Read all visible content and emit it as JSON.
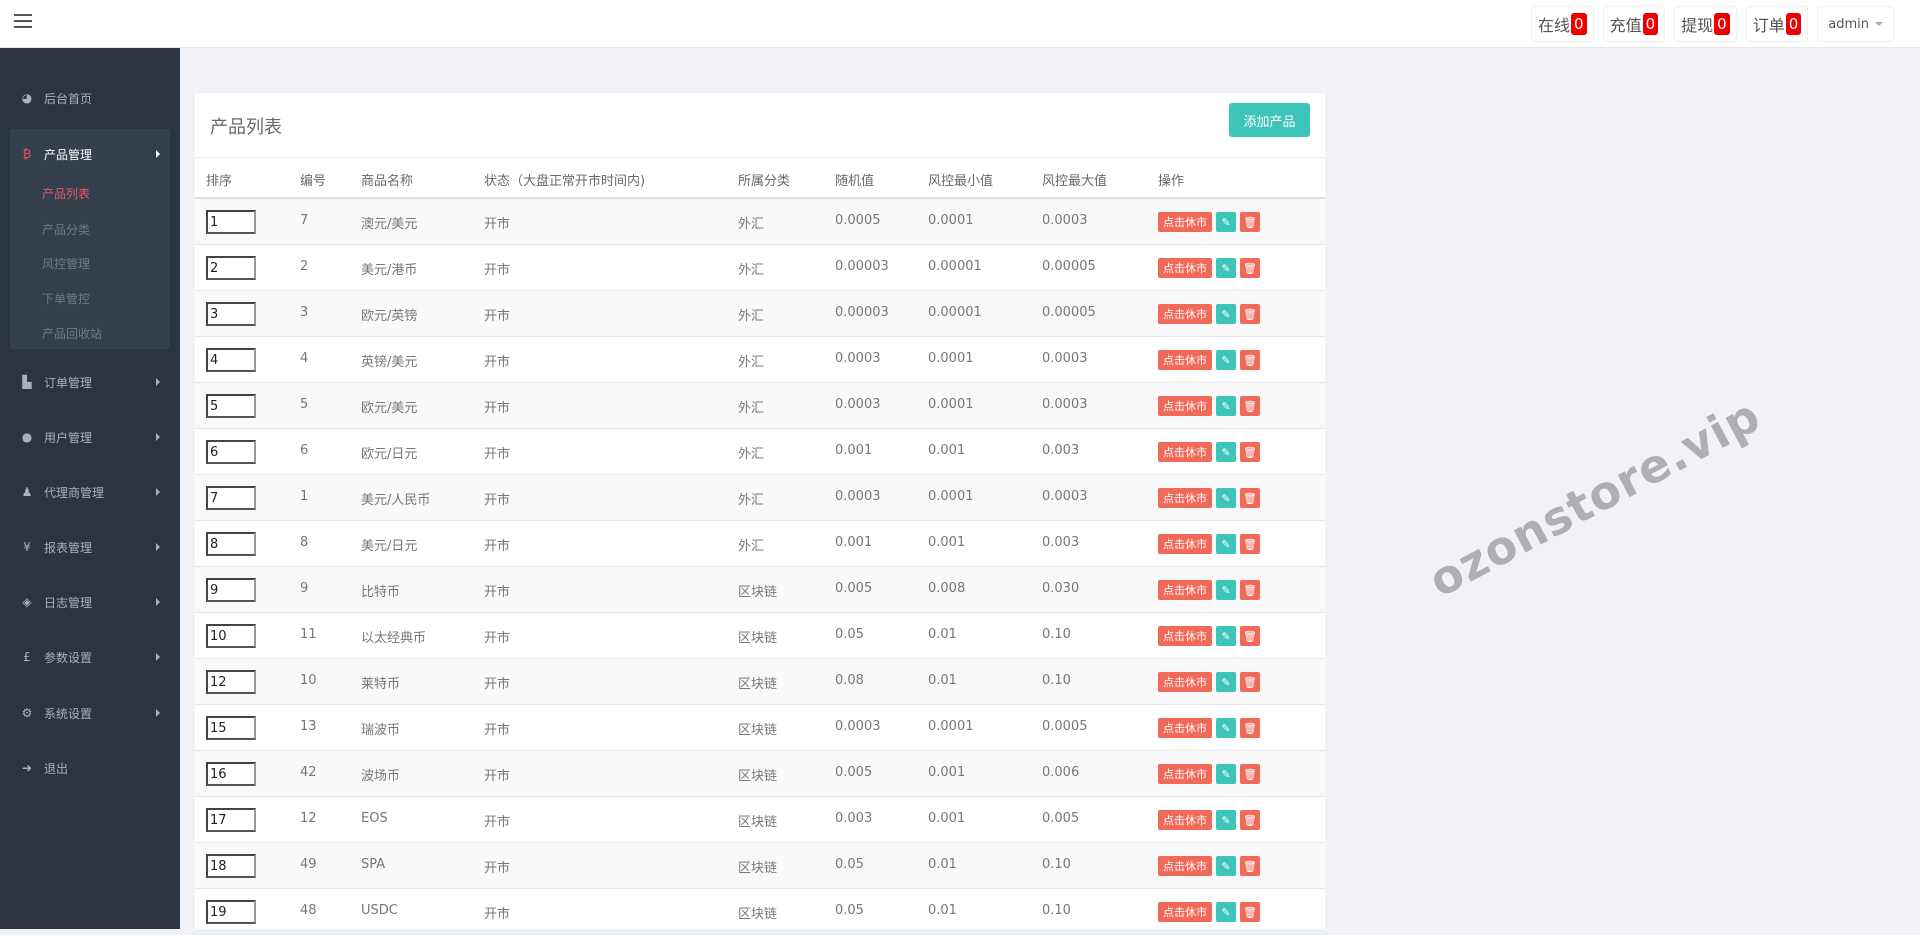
{
  "topbar": {
    "stats": [
      {
        "label": "在线",
        "count": "0"
      },
      {
        "label": "充值",
        "count": "0"
      },
      {
        "label": "提现",
        "count": "0"
      },
      {
        "label": "订单",
        "count": "0"
      }
    ],
    "user": "admin"
  },
  "sidebar": {
    "home": {
      "label": "后台首页",
      "icon": "dashboard-icon"
    },
    "product": {
      "label": "产品管理",
      "icon": "bitcoin-icon",
      "subitems": [
        "产品列表",
        "产品分类",
        "风控管理",
        "下单管控",
        "产品回收站"
      ],
      "active_sub": "产品列表"
    },
    "items": [
      {
        "label": "订单管理",
        "icon": "files-icon"
      },
      {
        "label": "用户管理",
        "icon": "user-icon"
      },
      {
        "label": "代理商管理",
        "icon": "user-md-icon"
      },
      {
        "label": "报表管理",
        "icon": "yen-icon"
      },
      {
        "label": "日志管理",
        "icon": "ticket-icon"
      },
      {
        "label": "参数设置",
        "icon": "pound-icon"
      },
      {
        "label": "系统设置",
        "icon": "gears-icon"
      }
    ],
    "logout": {
      "label": "退出",
      "icon": "sign-out-icon"
    }
  },
  "panel": {
    "title": "产品列表",
    "add_button": "添加产品",
    "columns": [
      "排序",
      "编号",
      "商品名称",
      "状态（大盘正常开市时间内)",
      "所属分类",
      "随机值",
      "风控最小值",
      "风控最大值",
      "操作"
    ],
    "action_close": "点击休市",
    "rows": [
      {
        "sort": "1",
        "id": "7",
        "name": "澳元/美元",
        "status": "开市",
        "category": "外汇",
        "random": "0.0005",
        "min": "0.0001",
        "max": "0.0003"
      },
      {
        "sort": "2",
        "id": "2",
        "name": "美元/港币",
        "status": "开市",
        "category": "外汇",
        "random": "0.00003",
        "min": "0.00001",
        "max": "0.00005"
      },
      {
        "sort": "3",
        "id": "3",
        "name": "欧元/英镑",
        "status": "开市",
        "category": "外汇",
        "random": "0.00003",
        "min": "0.00001",
        "max": "0.00005"
      },
      {
        "sort": "4",
        "id": "4",
        "name": "英镑/美元",
        "status": "开市",
        "category": "外汇",
        "random": "0.0003",
        "min": "0.0001",
        "max": "0.0003"
      },
      {
        "sort": "5",
        "id": "5",
        "name": "欧元/美元",
        "status": "开市",
        "category": "外汇",
        "random": "0.0003",
        "min": "0.0001",
        "max": "0.0003"
      },
      {
        "sort": "6",
        "id": "6",
        "name": "欧元/日元",
        "status": "开市",
        "category": "外汇",
        "random": "0.001",
        "min": "0.001",
        "max": "0.003"
      },
      {
        "sort": "7",
        "id": "1",
        "name": "美元/人民币",
        "status": "开市",
        "category": "外汇",
        "random": "0.0003",
        "min": "0.0001",
        "max": "0.0003"
      },
      {
        "sort": "8",
        "id": "8",
        "name": "美元/日元",
        "status": "开市",
        "category": "外汇",
        "random": "0.001",
        "min": "0.001",
        "max": "0.003"
      },
      {
        "sort": "9",
        "id": "9",
        "name": "比特币",
        "status": "开市",
        "category": "区块链",
        "random": "0.005",
        "min": "0.008",
        "max": "0.030"
      },
      {
        "sort": "10",
        "id": "11",
        "name": "以太经典币",
        "status": "开市",
        "category": "区块链",
        "random": "0.05",
        "min": "0.01",
        "max": "0.10"
      },
      {
        "sort": "12",
        "id": "10",
        "name": "莱特币",
        "status": "开市",
        "category": "区块链",
        "random": "0.08",
        "min": "0.01",
        "max": "0.10"
      },
      {
        "sort": "15",
        "id": "13",
        "name": "瑞波币",
        "status": "开市",
        "category": "区块链",
        "random": "0.0003",
        "min": "0.0001",
        "max": "0.0005"
      },
      {
        "sort": "16",
        "id": "42",
        "name": "波场币",
        "status": "开市",
        "category": "区块链",
        "random": "0.005",
        "min": "0.001",
        "max": "0.006"
      },
      {
        "sort": "17",
        "id": "12",
        "name": "EOS",
        "status": "开市",
        "category": "区块链",
        "random": "0.003",
        "min": "0.001",
        "max": "0.005"
      },
      {
        "sort": "18",
        "id": "49",
        "name": "SPA",
        "status": "开市",
        "category": "区块链",
        "random": "0.05",
        "min": "0.01",
        "max": "0.10"
      },
      {
        "sort": "19",
        "id": "48",
        "name": "USDC",
        "status": "开市",
        "category": "区块链",
        "random": "0.05",
        "min": "0.01",
        "max": "0.10"
      }
    ]
  },
  "watermark": "ozonstore.vip",
  "colors": {
    "accent": "#3ec5b9",
    "danger": "#f06a5a",
    "badge": "#ee0000",
    "sidebar": "#2b3440"
  }
}
